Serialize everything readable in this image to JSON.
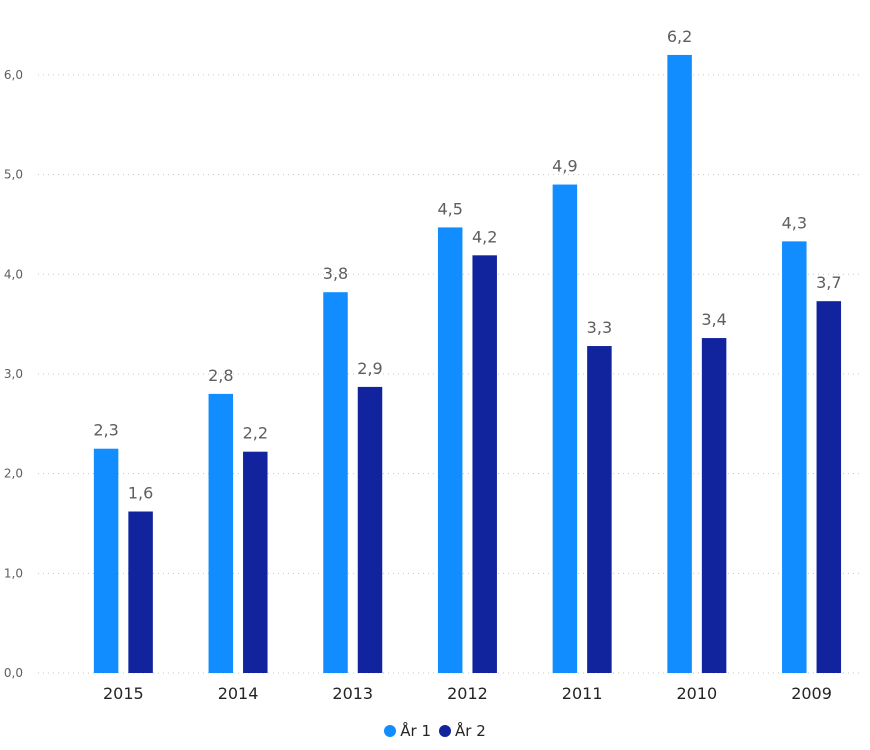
{
  "chart_data": {
    "type": "bar",
    "categories": [
      "2015",
      "2014",
      "2013",
      "2012",
      "2011",
      "2010",
      "2009"
    ],
    "series": [
      {
        "name": "År 1",
        "color": "#118DFF",
        "values": [
          2.25,
          2.8,
          3.82,
          4.47,
          4.9,
          6.2,
          4.33
        ],
        "labels": [
          "2,3",
          "2,8",
          "3,8",
          "4,5",
          "4,9",
          "6,2",
          "4,3"
        ]
      },
      {
        "name": "År 2",
        "color": "#12239E",
        "values": [
          1.62,
          2.22,
          2.87,
          4.19,
          3.28,
          3.36,
          3.73
        ],
        "labels": [
          "1,6",
          "2,2",
          "2,9",
          "4,2",
          "3,3",
          "3,4",
          "3,7"
        ]
      }
    ],
    "yticks": [
      0,
      1,
      2,
      3,
      4,
      5,
      6
    ],
    "ytick_labels": [
      "0,0",
      "1,0",
      "2,0",
      "3,0",
      "4,0",
      "5,0",
      "6,0"
    ],
    "ylim": [
      0,
      6.35
    ],
    "grid": true,
    "legend_position": "bottom-center"
  }
}
